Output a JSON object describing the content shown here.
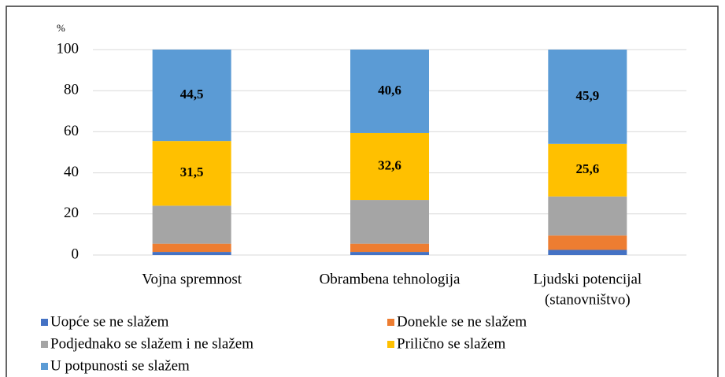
{
  "chart_data": {
    "type": "stacked_bar",
    "y_unit_label": "%",
    "categories": [
      "Vojna spremnost",
      "Obrambena tehnologija",
      [
        "Ljudski potencijal",
        "(stanovništvo)"
      ]
    ],
    "series": [
      {
        "name": "Uopće se ne slažem",
        "color": "#4472c4",
        "values": [
          1.5,
          1.5,
          2.5
        ]
      },
      {
        "name": "Donekle se ne slažem",
        "color": "#ed7d31",
        "values": [
          4,
          4,
          7
        ]
      },
      {
        "name": "Podjednako se slažem i ne slažem",
        "color": "#a5a5a5",
        "values": [
          18.5,
          21.3,
          19
        ]
      },
      {
        "name": "Prilično se slažem",
        "color": "#ffc000",
        "values": [
          31.5,
          32.6,
          25.6
        ],
        "value_labels": [
          "31,5",
          "32,6",
          "25,6"
        ]
      },
      {
        "name": "U potpunosti se slažem",
        "color": "#5b9bd5",
        "values": [
          44.5,
          40.6,
          45.9
        ],
        "value_labels": [
          "44,5",
          "40,6",
          "45,9"
        ]
      }
    ],
    "ylim": [
      0,
      100
    ],
    "yticks": [
      0,
      20,
      40,
      60,
      80,
      100
    ],
    "grid": true
  }
}
